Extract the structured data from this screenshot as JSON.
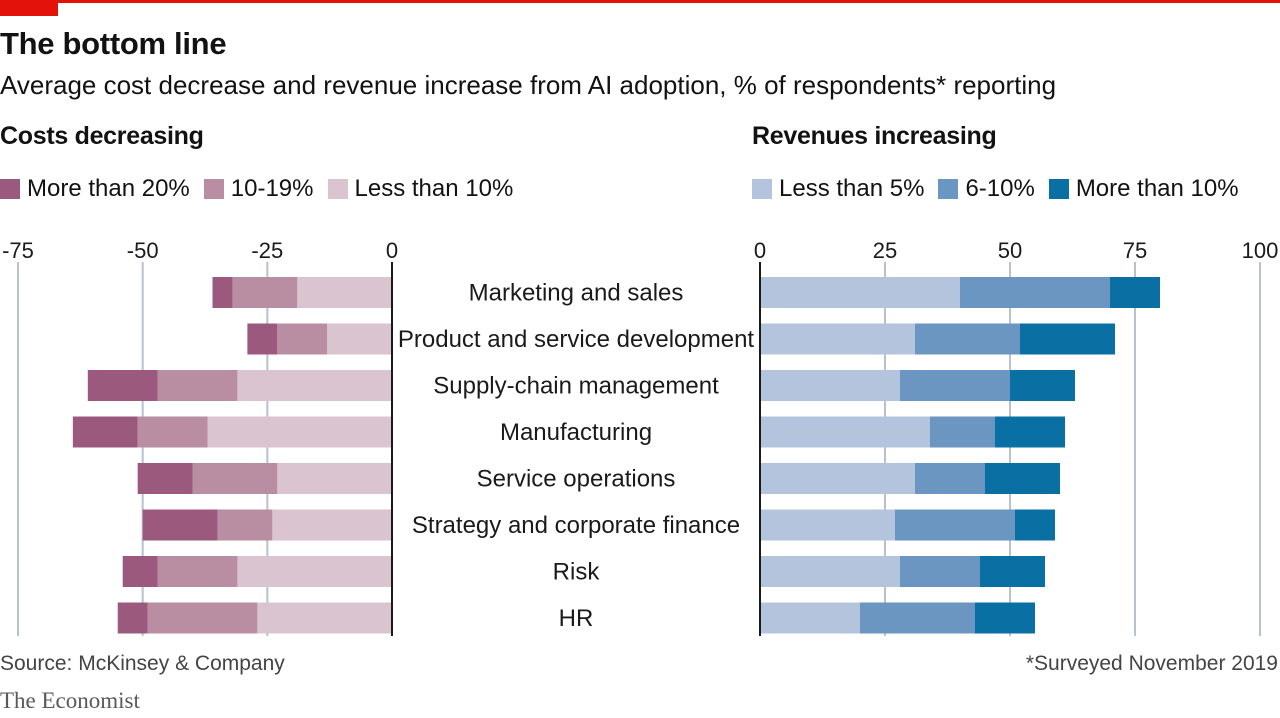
{
  "brand_color": "#e3120b",
  "title": "The bottom line",
  "subtitle": "Average cost decrease and revenue increase from AI adoption, % of respondents* reporting",
  "source": "Source: McKinsey & Company",
  "footnote": "*Surveyed November 2019",
  "publisher": "The Economist",
  "chart_data": [
    {
      "type": "bar",
      "orientation": "horizontal",
      "stacked": true,
      "title": "Costs decreasing",
      "categories": [
        "Marketing and sales",
        "Product and service development",
        "Supply-chain management",
        "Manufacturing",
        "Service operations",
        "Strategy and corporate finance",
        "Risk",
        "HR"
      ],
      "xlim": [
        -75,
        0
      ],
      "ticks": [
        "-75",
        "-50",
        "-25",
        "0"
      ],
      "tick_values": [
        -75,
        -50,
        -25,
        0
      ],
      "grid": true,
      "legend_position": "top-left",
      "series": [
        {
          "name": "Less than 10%",
          "color": "#d9c4cf",
          "values": [
            -19,
            -13,
            -31,
            -37,
            -23,
            -24,
            -31,
            -27
          ]
        },
        {
          "name": "10-19%",
          "color": "#b98ea2",
          "values": [
            -13,
            -10,
            -16,
            -14,
            -17,
            -11,
            -16,
            -22
          ]
        },
        {
          "name": "More than 20%",
          "color": "#9b5a7d",
          "values": [
            -4,
            -6,
            -14,
            -13,
            -11,
            -15,
            -7,
            -6
          ]
        }
      ],
      "legend_order": [
        "More than 20%",
        "10-19%",
        "Less than 10%"
      ]
    },
    {
      "type": "bar",
      "orientation": "horizontal",
      "stacked": true,
      "title": "Revenues increasing",
      "categories": [
        "Marketing and sales",
        "Product and service development",
        "Supply-chain management",
        "Manufacturing",
        "Service operations",
        "Strategy and corporate finance",
        "Risk",
        "HR"
      ],
      "xlim": [
        0,
        100
      ],
      "ticks": [
        "0",
        "25",
        "50",
        "75",
        "100"
      ],
      "tick_values": [
        0,
        25,
        50,
        75,
        100
      ],
      "grid": true,
      "legend_position": "top-left",
      "series": [
        {
          "name": "Less than 5%",
          "color": "#b5c4dd",
          "values": [
            40,
            31,
            28,
            34,
            31,
            27,
            28,
            20
          ]
        },
        {
          "name": "6-10%",
          "color": "#6b96c1",
          "values": [
            30,
            21,
            22,
            13,
            14,
            24,
            16,
            23
          ]
        },
        {
          "name": "More than 10%",
          "color": "#0a6fa3",
          "values": [
            10,
            19,
            13,
            14,
            15,
            8,
            13,
            12
          ]
        }
      ],
      "legend_order": [
        "Less than 5%",
        "6-10%",
        "More than 10%"
      ]
    }
  ]
}
